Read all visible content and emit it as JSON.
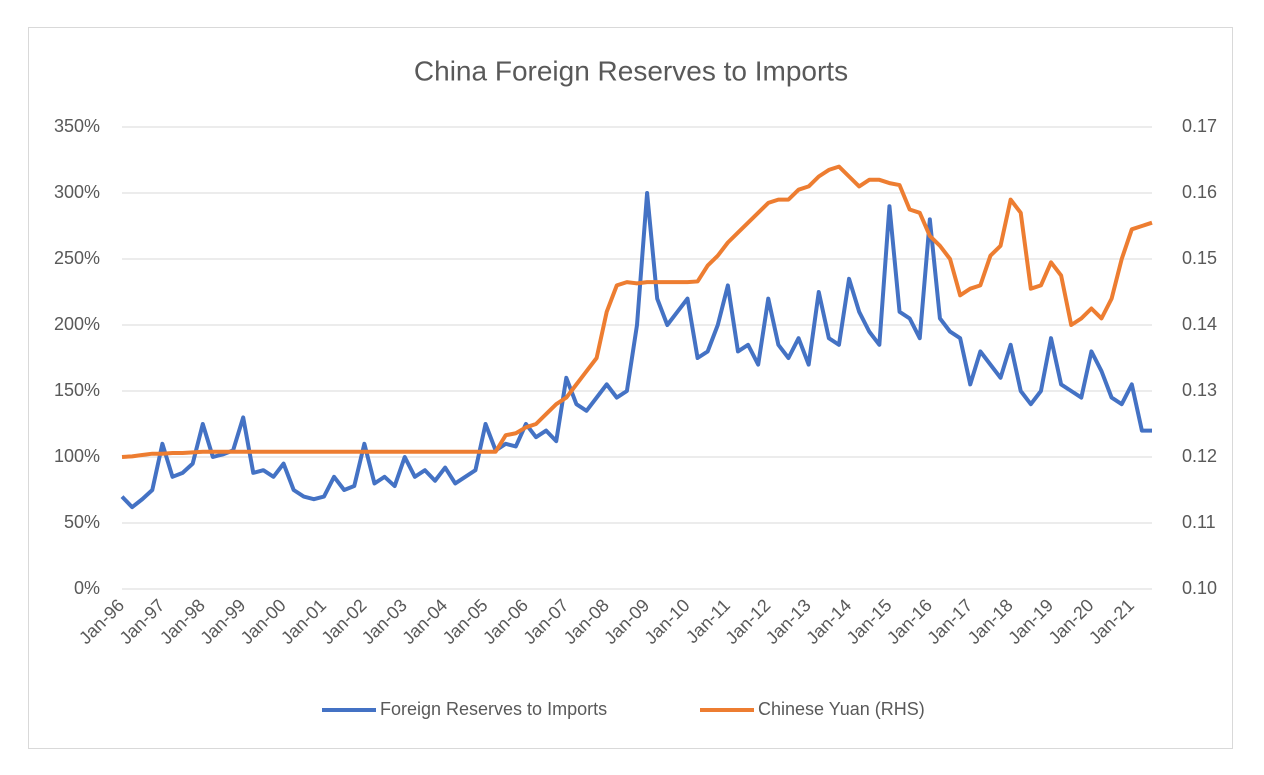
{
  "chart_data": {
    "type": "line",
    "title": "China Foreign Reserves to Imports",
    "categories": [
      "Jan-96",
      null,
      null,
      null,
      "Jan-97",
      null,
      null,
      null,
      "Jan-98",
      null,
      null,
      null,
      "Jan-99",
      null,
      null,
      null,
      "Jan-00",
      null,
      null,
      null,
      "Jan-01",
      null,
      null,
      null,
      "Jan-02",
      null,
      null,
      null,
      "Jan-03",
      null,
      null,
      null,
      "Jan-04",
      null,
      null,
      null,
      "Jan-05",
      null,
      null,
      null,
      "Jan-06",
      null,
      null,
      null,
      "Jan-07",
      null,
      null,
      null,
      "Jan-08",
      null,
      null,
      null,
      "Jan-09",
      null,
      null,
      null,
      "Jan-10",
      null,
      null,
      null,
      "Jan-11",
      null,
      null,
      null,
      "Jan-12",
      null,
      null,
      null,
      "Jan-13",
      null,
      null,
      null,
      "Jan-14",
      null,
      null,
      null,
      "Jan-15",
      null,
      null,
      null,
      "Jan-16",
      null,
      null,
      null,
      "Jan-17",
      null,
      null,
      null,
      "Jan-18",
      null,
      null,
      null,
      "Jan-19",
      null,
      null,
      null,
      "Jan-20",
      null,
      null,
      null,
      "Jan-21",
      null,
      null
    ],
    "series": [
      {
        "name": "Foreign Reserves to Imports",
        "color": "#4472c4",
        "axis": "y",
        "values": [
          70,
          62,
          68,
          75,
          110,
          85,
          88,
          95,
          125,
          100,
          102,
          105,
          130,
          88,
          90,
          85,
          95,
          75,
          70,
          68,
          70,
          85,
          75,
          78,
          110,
          80,
          85,
          78,
          100,
          85,
          90,
          82,
          92,
          80,
          85,
          90,
          125,
          105,
          110,
          108,
          125,
          115,
          120,
          112,
          160,
          140,
          135,
          145,
          155,
          145,
          150,
          200,
          300,
          220,
          200,
          210,
          220,
          175,
          180,
          200,
          230,
          180,
          185,
          170,
          220,
          185,
          175,
          190,
          170,
          225,
          190,
          185,
          235,
          210,
          195,
          185,
          290,
          210,
          205,
          190,
          280,
          205,
          195,
          190,
          155,
          180,
          170,
          160,
          185,
          150,
          140,
          150,
          190,
          155,
          150,
          145,
          180,
          165,
          145,
          140,
          155,
          120,
          120
        ]
      },
      {
        "name": "Chinese Yuan (RHS)",
        "color": "#ed7d31",
        "axis": "y2",
        "values": [
          0.12,
          0.1201,
          0.1203,
          0.1205,
          0.1205,
          0.1206,
          0.1206,
          0.1207,
          0.1208,
          0.1208,
          0.1208,
          0.1208,
          0.1208,
          0.1208,
          0.1208,
          0.1208,
          0.1208,
          0.1208,
          0.1208,
          0.1208,
          0.1208,
          0.1208,
          0.1208,
          0.1208,
          0.1208,
          0.1208,
          0.1208,
          0.1208,
          0.1208,
          0.1208,
          0.1208,
          0.1208,
          0.1208,
          0.1208,
          0.1208,
          0.1208,
          0.1208,
          0.1208,
          0.1233,
          0.1236,
          0.1245,
          0.125,
          0.1265,
          0.128,
          0.129,
          0.131,
          0.133,
          0.135,
          0.142,
          0.146,
          0.1465,
          0.1463,
          0.1465,
          0.1465,
          0.1465,
          0.1465,
          0.1465,
          0.1466,
          0.149,
          0.1505,
          0.1525,
          0.154,
          0.1555,
          0.157,
          0.1585,
          0.159,
          0.159,
          0.1605,
          0.161,
          0.1625,
          0.1635,
          0.164,
          0.1625,
          0.161,
          0.162,
          0.162,
          0.1615,
          0.1612,
          0.1575,
          0.157,
          0.1535,
          0.152,
          0.15,
          0.1445,
          0.1455,
          0.146,
          0.1505,
          0.152,
          0.159,
          0.157,
          0.1455,
          0.146,
          0.1495,
          0.1475,
          0.14,
          0.141,
          0.1425,
          0.141,
          0.144,
          0.15,
          0.1545,
          0.155,
          0.1555
        ]
      }
    ],
    "ylim": [
      0,
      350
    ],
    "yticks": [
      {
        "value": 0,
        "label": "0%"
      },
      {
        "value": 50,
        "label": "50%"
      },
      {
        "value": 100,
        "label": "100%"
      },
      {
        "value": 150,
        "label": "150%"
      },
      {
        "value": 200,
        "label": "200%"
      },
      {
        "value": 250,
        "label": "250%"
      },
      {
        "value": 300,
        "label": "300%"
      },
      {
        "value": 350,
        "label": "350%"
      }
    ],
    "y2lim": [
      0.1,
      0.17
    ],
    "y2ticks": [
      {
        "value": 0.1,
        "label": "0.10"
      },
      {
        "value": 0.11,
        "label": "0.11"
      },
      {
        "value": 0.12,
        "label": "0.12"
      },
      {
        "value": 0.13,
        "label": "0.13"
      },
      {
        "value": 0.14,
        "label": "0.14"
      },
      {
        "value": 0.15,
        "label": "0.15"
      },
      {
        "value": 0.16,
        "label": "0.16"
      },
      {
        "value": 0.17,
        "label": "0.17"
      }
    ],
    "grid": true,
    "legend": "bottom"
  }
}
